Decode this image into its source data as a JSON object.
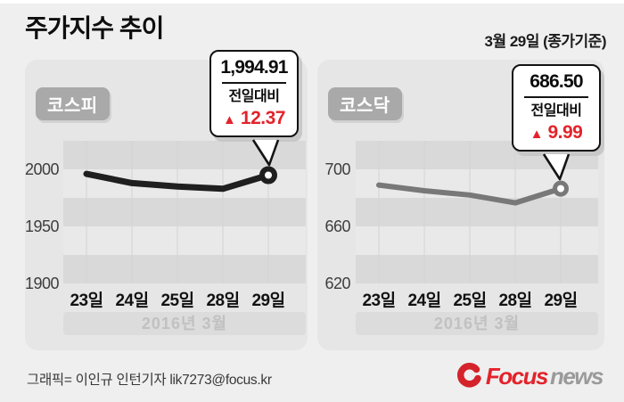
{
  "header": {
    "title": "주가지수 추이",
    "date_note": "3월 29일 (종가기준)"
  },
  "chart_data": [
    {
      "type": "line",
      "title": "코스피",
      "categories": [
        "23일",
        "24일",
        "25일",
        "28일",
        "29일"
      ],
      "values": [
        1996,
        1988,
        1985,
        1983,
        1994.91
      ],
      "ylim": [
        1900,
        2025
      ],
      "yticks": [
        2000,
        1950,
        1900
      ],
      "band_interval": 25,
      "x_axis_label": "2016년 3월",
      "line_color": "#1f1f1f",
      "legend": "none",
      "grid": "horizontal-bands+vertical-lines",
      "callout": {
        "value": "1,994.91",
        "label": "전일대비",
        "direction": "▲",
        "change": "12.37"
      }
    },
    {
      "type": "line",
      "title": "코스닥",
      "categories": [
        "23일",
        "24일",
        "25일",
        "28일",
        "29일"
      ],
      "values": [
        689,
        685,
        682,
        676.5,
        686.5
      ],
      "ylim": [
        620,
        720
      ],
      "yticks": [
        700,
        660,
        620
      ],
      "band_interval": 20,
      "x_axis_label": "2016년 3월",
      "line_color": "#787878",
      "legend": "none",
      "grid": "horizontal-bands+vertical-lines",
      "callout": {
        "value": "686.50",
        "label": "전일대비",
        "direction": "▲",
        "change": "9.99"
      }
    }
  ],
  "footer": {
    "credit": "그래픽= 이인규 인턴기자 lik7273@focus.kr",
    "logo_brand": "Focus",
    "logo_suffix": "news"
  },
  "colors": {
    "accent_red": "#e3232b",
    "panel_bg": "#e6e6e6",
    "band_dark": "#d9d9d9",
    "band_light": "#e9e9e9",
    "grid_line": "#d2d2d2",
    "badge_bg": "#a9a9a9",
    "kospi_line": "#1f1f1f",
    "kosdaq_line": "#787878"
  }
}
